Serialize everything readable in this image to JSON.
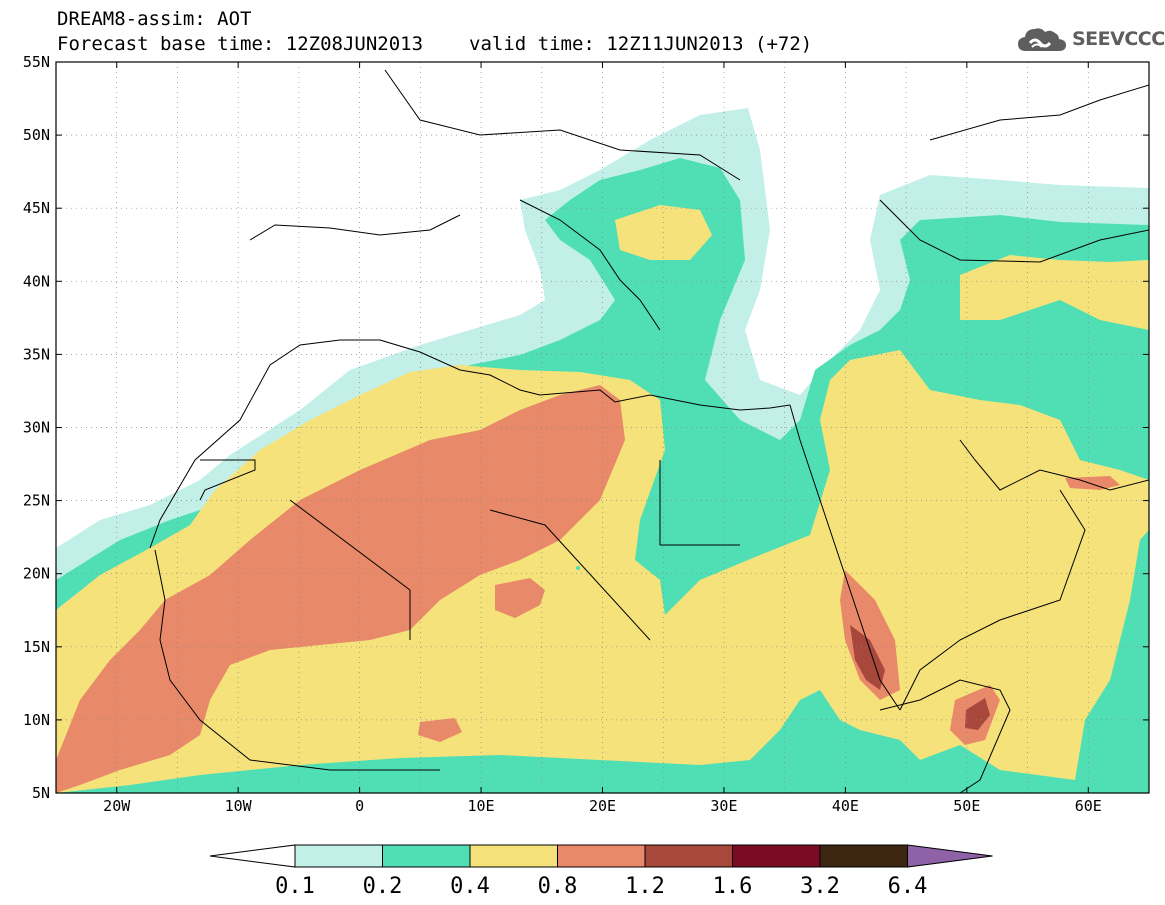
{
  "header": {
    "line1": "DREAM8-assim: AOT",
    "base_time": "Forecast base time: 12Z08JUN2013",
    "valid_time": "valid time: 12Z11JUN2013 (+72)",
    "logo_icon": "cloud-icon",
    "logo_text": "SEEVCCC"
  },
  "map": {
    "variable": "AOT",
    "lat_range": [
      5,
      55
    ],
    "lon_range": [
      -25,
      65
    ],
    "lat_ticks": [
      "55N",
      "50N",
      "45N",
      "40N",
      "35N",
      "30N",
      "25N",
      "20N",
      "15N",
      "10N",
      "5N"
    ],
    "lon_ticks": [
      "20W",
      "10W",
      "0",
      "10E",
      "20E",
      "30E",
      "40E",
      "50E",
      "60E"
    ],
    "gridlines": "dotted",
    "background": "#ffffff"
  },
  "colorbar": {
    "labels": [
      "0.1",
      "0.2",
      "0.4",
      "0.8",
      "1.2",
      "1.6",
      "3.2",
      "6.4"
    ],
    "colors": [
      "#ffffff",
      "#c3efe9",
      "#50dfb4",
      "#f5e27a",
      "#e8896a",
      "#a8483c",
      "#7a0b22",
      "#3d2712",
      "#8f62a8"
    ],
    "extend": "both"
  }
}
